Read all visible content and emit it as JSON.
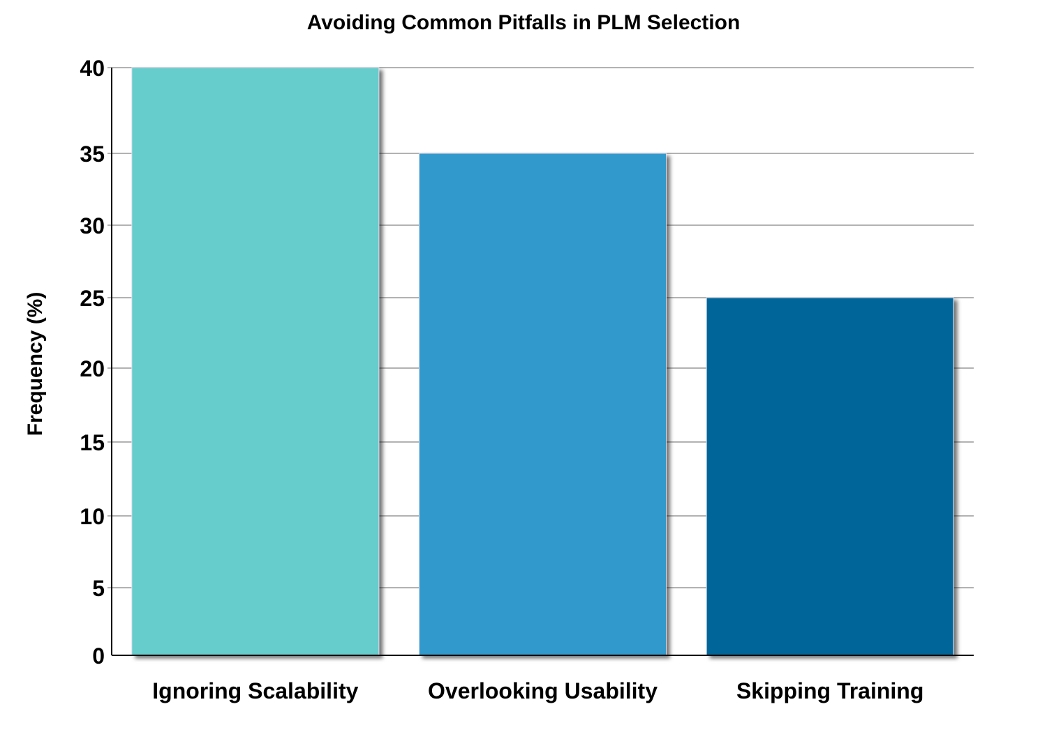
{
  "chart_data": {
    "type": "bar",
    "title": "Avoiding Common Pitfalls in PLM Selection",
    "xlabel": "",
    "ylabel": "Frequency (%)",
    "categories": [
      "Ignoring Scalability",
      "Overlooking Usability",
      "Skipping Training"
    ],
    "values": [
      40,
      35,
      25
    ],
    "colors": [
      "#66CCCC",
      "#3399CC",
      "#006699"
    ],
    "ylim": [
      0,
      40
    ],
    "yticks": [
      0,
      5,
      10,
      15,
      20,
      25,
      30,
      35,
      40
    ],
    "grid": true,
    "legend": "none"
  }
}
